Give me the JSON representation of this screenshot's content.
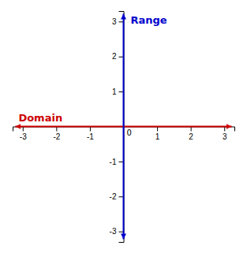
{
  "chart_data": {
    "type": "line",
    "xlim": [
      -3.3,
      3.3
    ],
    "ylim": [
      -3.3,
      3.3
    ],
    "xticks": [
      -3,
      -2,
      -1,
      1,
      2,
      3
    ],
    "yticks": [
      -3,
      -2,
      -1,
      1,
      2,
      3
    ],
    "grid": false,
    "marker": "arrow",
    "annotations": [
      {
        "text": "0",
        "x": 0,
        "y": 0
      }
    ],
    "series": [
      {
        "name": "Domain",
        "color": "#cc0000",
        "x": [
          -3.22,
          3.22
        ],
        "values": [
          0,
          0
        ]
      },
      {
        "name": "Range",
        "color": "#0000cc",
        "x": [
          0,
          0
        ],
        "values": [
          -3.22,
          3.22
        ]
      }
    ]
  }
}
